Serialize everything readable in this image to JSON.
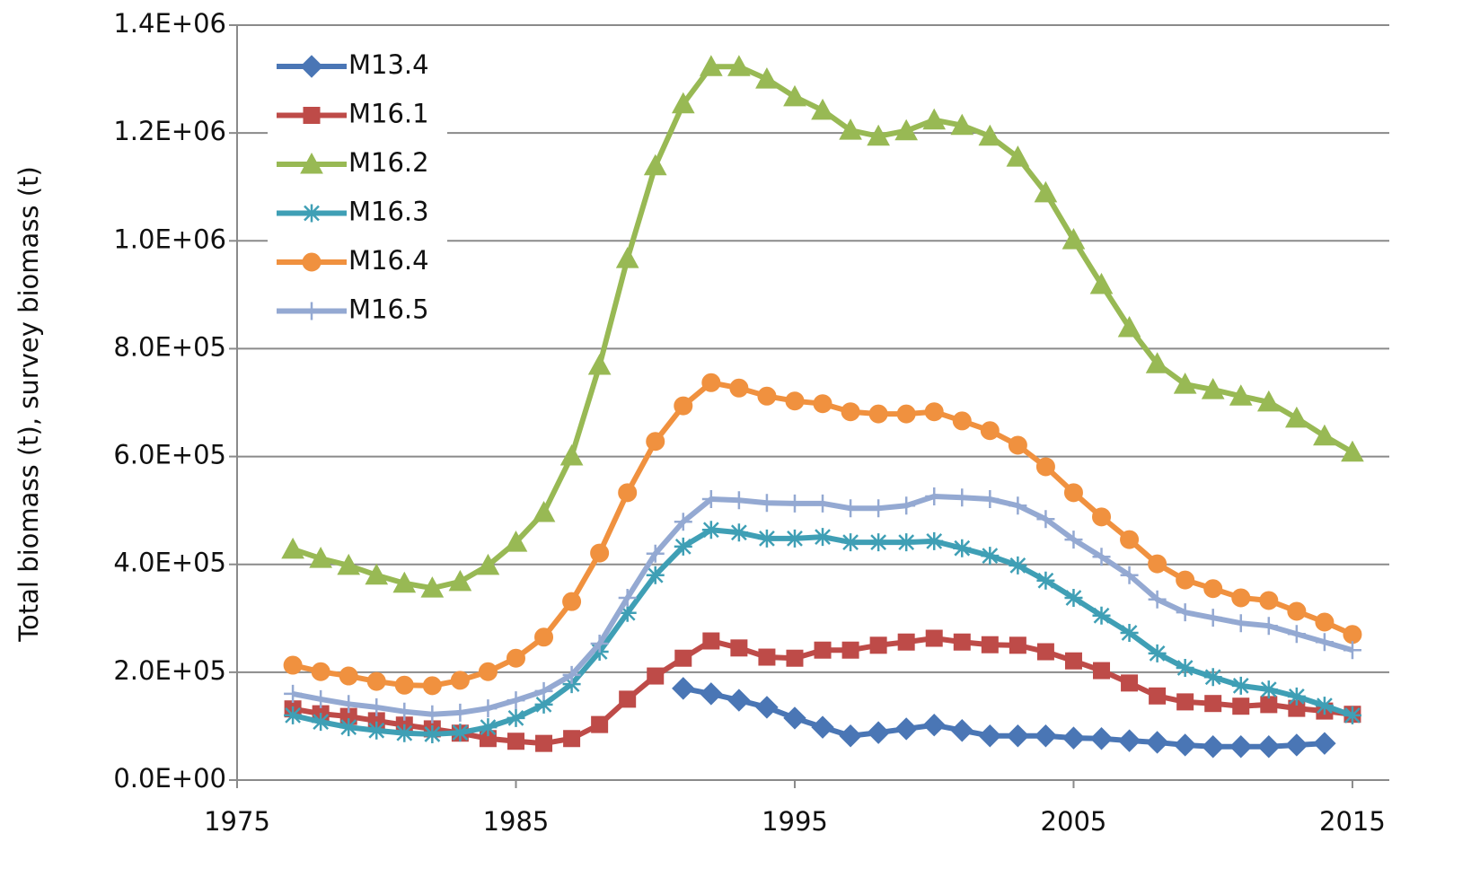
{
  "chart_data": {
    "type": "line",
    "y_label": "Total biomass (t), survey biomass (t)",
    "x": [
      1977,
      1978,
      1979,
      1980,
      1981,
      1982,
      1983,
      1984,
      1985,
      1986,
      1987,
      1988,
      1989,
      1990,
      1991,
      1992,
      1993,
      1994,
      1995,
      1996,
      1997,
      1998,
      1999,
      2000,
      2001,
      2002,
      2003,
      2004,
      2005,
      2006,
      2007,
      2008,
      2009,
      2010,
      2011,
      2012,
      2013,
      2014,
      2015
    ],
    "xlim": [
      1975,
      2016
    ],
    "xticks": [
      1975,
      1985,
      1995,
      2005,
      2015
    ],
    "ylim": [
      0,
      1400000
    ],
    "yticks": [
      {
        "value": 0,
        "label": "0.0E+00"
      },
      {
        "value": 200000,
        "label": "2.0E+05"
      },
      {
        "value": 400000,
        "label": "4.0E+05"
      },
      {
        "value": 600000,
        "label": "6.0E+05"
      },
      {
        "value": 800000,
        "label": "8.0E+05"
      },
      {
        "value": 1000000,
        "label": "1.0E+06"
      },
      {
        "value": 1200000,
        "label": "1.2E+06"
      },
      {
        "value": 1400000,
        "label": "1.4E+06"
      }
    ],
    "grid": true,
    "legend": "upper-left",
    "series": [
      {
        "name": "M13.4",
        "color": "#4a76b5",
        "marker": "diamond",
        "values": [
          null,
          null,
          null,
          null,
          null,
          null,
          null,
          null,
          null,
          null,
          null,
          null,
          null,
          null,
          170000,
          160000,
          148000,
          135000,
          115000,
          98000,
          82000,
          88000,
          95000,
          102000,
          92000,
          82000,
          82000,
          82000,
          78000,
          77000,
          73000,
          70000,
          65000,
          62000,
          62000,
          62000,
          65000,
          68000,
          null
        ]
      },
      {
        "name": "M16.1",
        "color": "#be4b48",
        "marker": "square",
        "values": [
          132000,
          123000,
          118000,
          110000,
          102000,
          95000,
          87000,
          77000,
          72000,
          68000,
          77000,
          103000,
          150000,
          193000,
          226000,
          258000,
          245000,
          228000,
          226000,
          241000,
          241000,
          250000,
          256000,
          263000,
          256000,
          251000,
          250000,
          238000,
          221000,
          203000,
          180000,
          156000,
          145000,
          142000,
          137000,
          140000,
          133000,
          128000,
          122000
        ]
      },
      {
        "name": "M16.2",
        "color": "#98b954",
        "marker": "triangle",
        "values": [
          428000,
          411000,
          398000,
          380000,
          365000,
          356000,
          368000,
          398000,
          441000,
          496000,
          601000,
          769000,
          967000,
          1139000,
          1254000,
          1323000,
          1323000,
          1300000,
          1267000,
          1242000,
          1205000,
          1194000,
          1204000,
          1224000,
          1214000,
          1194000,
          1155000,
          1089000,
          1002000,
          919000,
          839000,
          772000,
          734000,
          724000,
          712000,
          701000,
          671000,
          638000,
          608000
        ]
      },
      {
        "name": "M16.3",
        "color": "#3f9fb5",
        "marker": "star",
        "values": [
          120000,
          108000,
          98000,
          92000,
          87000,
          85000,
          88000,
          98000,
          115000,
          140000,
          178000,
          238000,
          310000,
          380000,
          433000,
          464000,
          459000,
          448000,
          448000,
          451000,
          441000,
          441000,
          441000,
          443000,
          430000,
          416000,
          398000,
          370000,
          338000,
          305000,
          273000,
          235000,
          208000,
          191000,
          175000,
          168000,
          155000,
          138000,
          120000
        ]
      },
      {
        "name": "M16.4",
        "color": "#f0913f",
        "marker": "circle",
        "values": [
          213000,
          201000,
          193000,
          183000,
          176000,
          175000,
          185000,
          201000,
          226000,
          265000,
          331000,
          421000,
          533000,
          628000,
          694000,
          737000,
          727000,
          712000,
          703000,
          698000,
          683000,
          679000,
          679000,
          683000,
          666000,
          648000,
          621000,
          581000,
          533000,
          488000,
          446000,
          401000,
          371000,
          355000,
          338000,
          333000,
          313000,
          293000,
          270000
        ]
      },
      {
        "name": "M16.5",
        "color": "#94a9d2",
        "marker": "plus",
        "values": [
          160000,
          150000,
          141000,
          135000,
          127000,
          122000,
          125000,
          133000,
          148000,
          165000,
          195000,
          253000,
          338000,
          420000,
          479000,
          521000,
          519000,
          514000,
          513000,
          513000,
          504000,
          504000,
          509000,
          526000,
          524000,
          521000,
          509000,
          484000,
          446000,
          414000,
          380000,
          335000,
          311000,
          301000,
          291000,
          286000,
          271000,
          256000,
          241000
        ]
      }
    ]
  }
}
